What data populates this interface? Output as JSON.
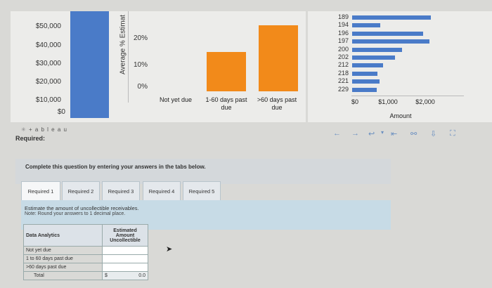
{
  "chart_data": [
    {
      "type": "bar",
      "title": "",
      "ylabel": "",
      "yticks": [
        "$50,000",
        "$40,000",
        "$30,000",
        "$20,000",
        "$10,000",
        "$0"
      ],
      "categories": [
        ""
      ],
      "values": [
        60000
      ]
    },
    {
      "type": "bar",
      "ylabel": "Average % Estimat",
      "yticks": [
        "20%",
        "10%",
        "0%"
      ],
      "categories": [
        "Not yet due",
        "1-60 days past due",
        ">60 days past due"
      ],
      "values": [
        0,
        0.15,
        0.25
      ],
      "ylim": [
        0,
        0.25
      ]
    },
    {
      "type": "bar",
      "orientation": "horizontal",
      "categories": [
        "189",
        "194",
        "196",
        "197",
        "200",
        "202",
        "212",
        "218",
        "221",
        "229"
      ],
      "values": [
        2200,
        780,
        1980,
        2150,
        1400,
        1200,
        870,
        700,
        770,
        690
      ],
      "xticks": [
        "$0",
        "$1,000",
        "$2,000"
      ],
      "xlabel": "Amount"
    }
  ],
  "tableau_logo": "+ a b l e a u",
  "required_label": "Required:",
  "instruction": "Complete this question by entering your answers in the tabs below.",
  "tabs": [
    "Required 1",
    "Required 2",
    "Required 3",
    "Required 4",
    "Required 5"
  ],
  "task": {
    "line1": "Estimate the amount of uncollectible receivables.",
    "line2": "Note: Round your answers to 1 decimal place."
  },
  "table": {
    "header_left": "Data Analytics",
    "header_right": "Estimated Amount Uncollectible",
    "rows": [
      "Not yet due",
      "1 to 60 days past due",
      ">60 days past due",
      "Total"
    ],
    "total_currency": "$",
    "total_value": "0.0"
  },
  "colors": {
    "blue": "#4a7bc8",
    "orange": "#f28a1a",
    "panel": "#ececea",
    "instruction_bg": "#d4d8db",
    "task_bg": "#c7dbe6"
  }
}
